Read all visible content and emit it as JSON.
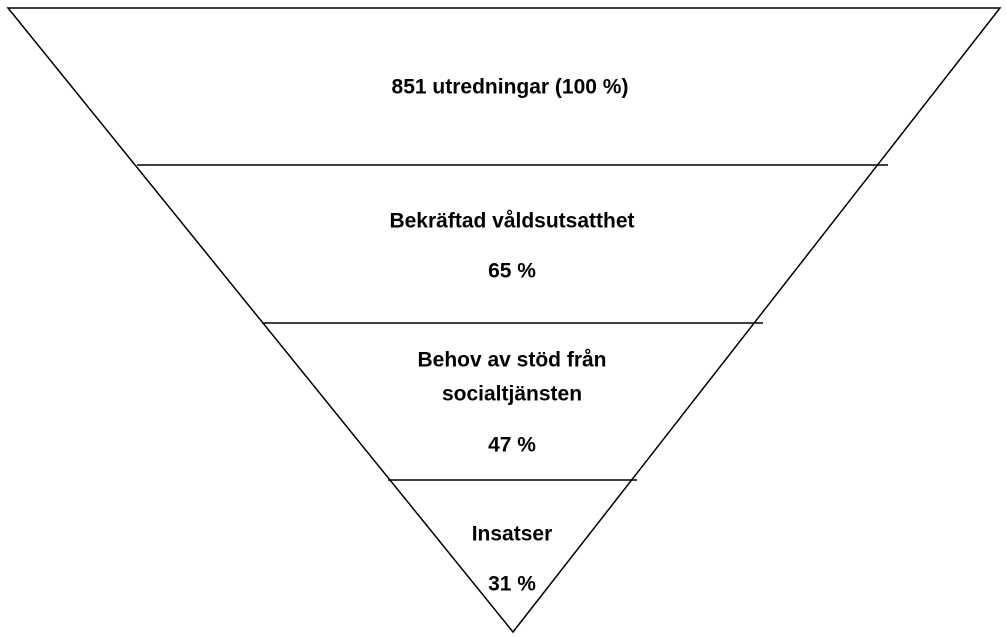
{
  "levels": [
    {
      "label": [
        "851 utredningar (100 %)"
      ]
    },
    {
      "label": [
        "Bekräftad våldsutsatthet"
      ],
      "value": "65 %"
    },
    {
      "label": [
        "Behov av stöd från",
        "socialtjänsten"
      ],
      "value": "47 %"
    },
    {
      "label": [
        "Insatser"
      ],
      "value": "31 %"
    }
  ]
}
